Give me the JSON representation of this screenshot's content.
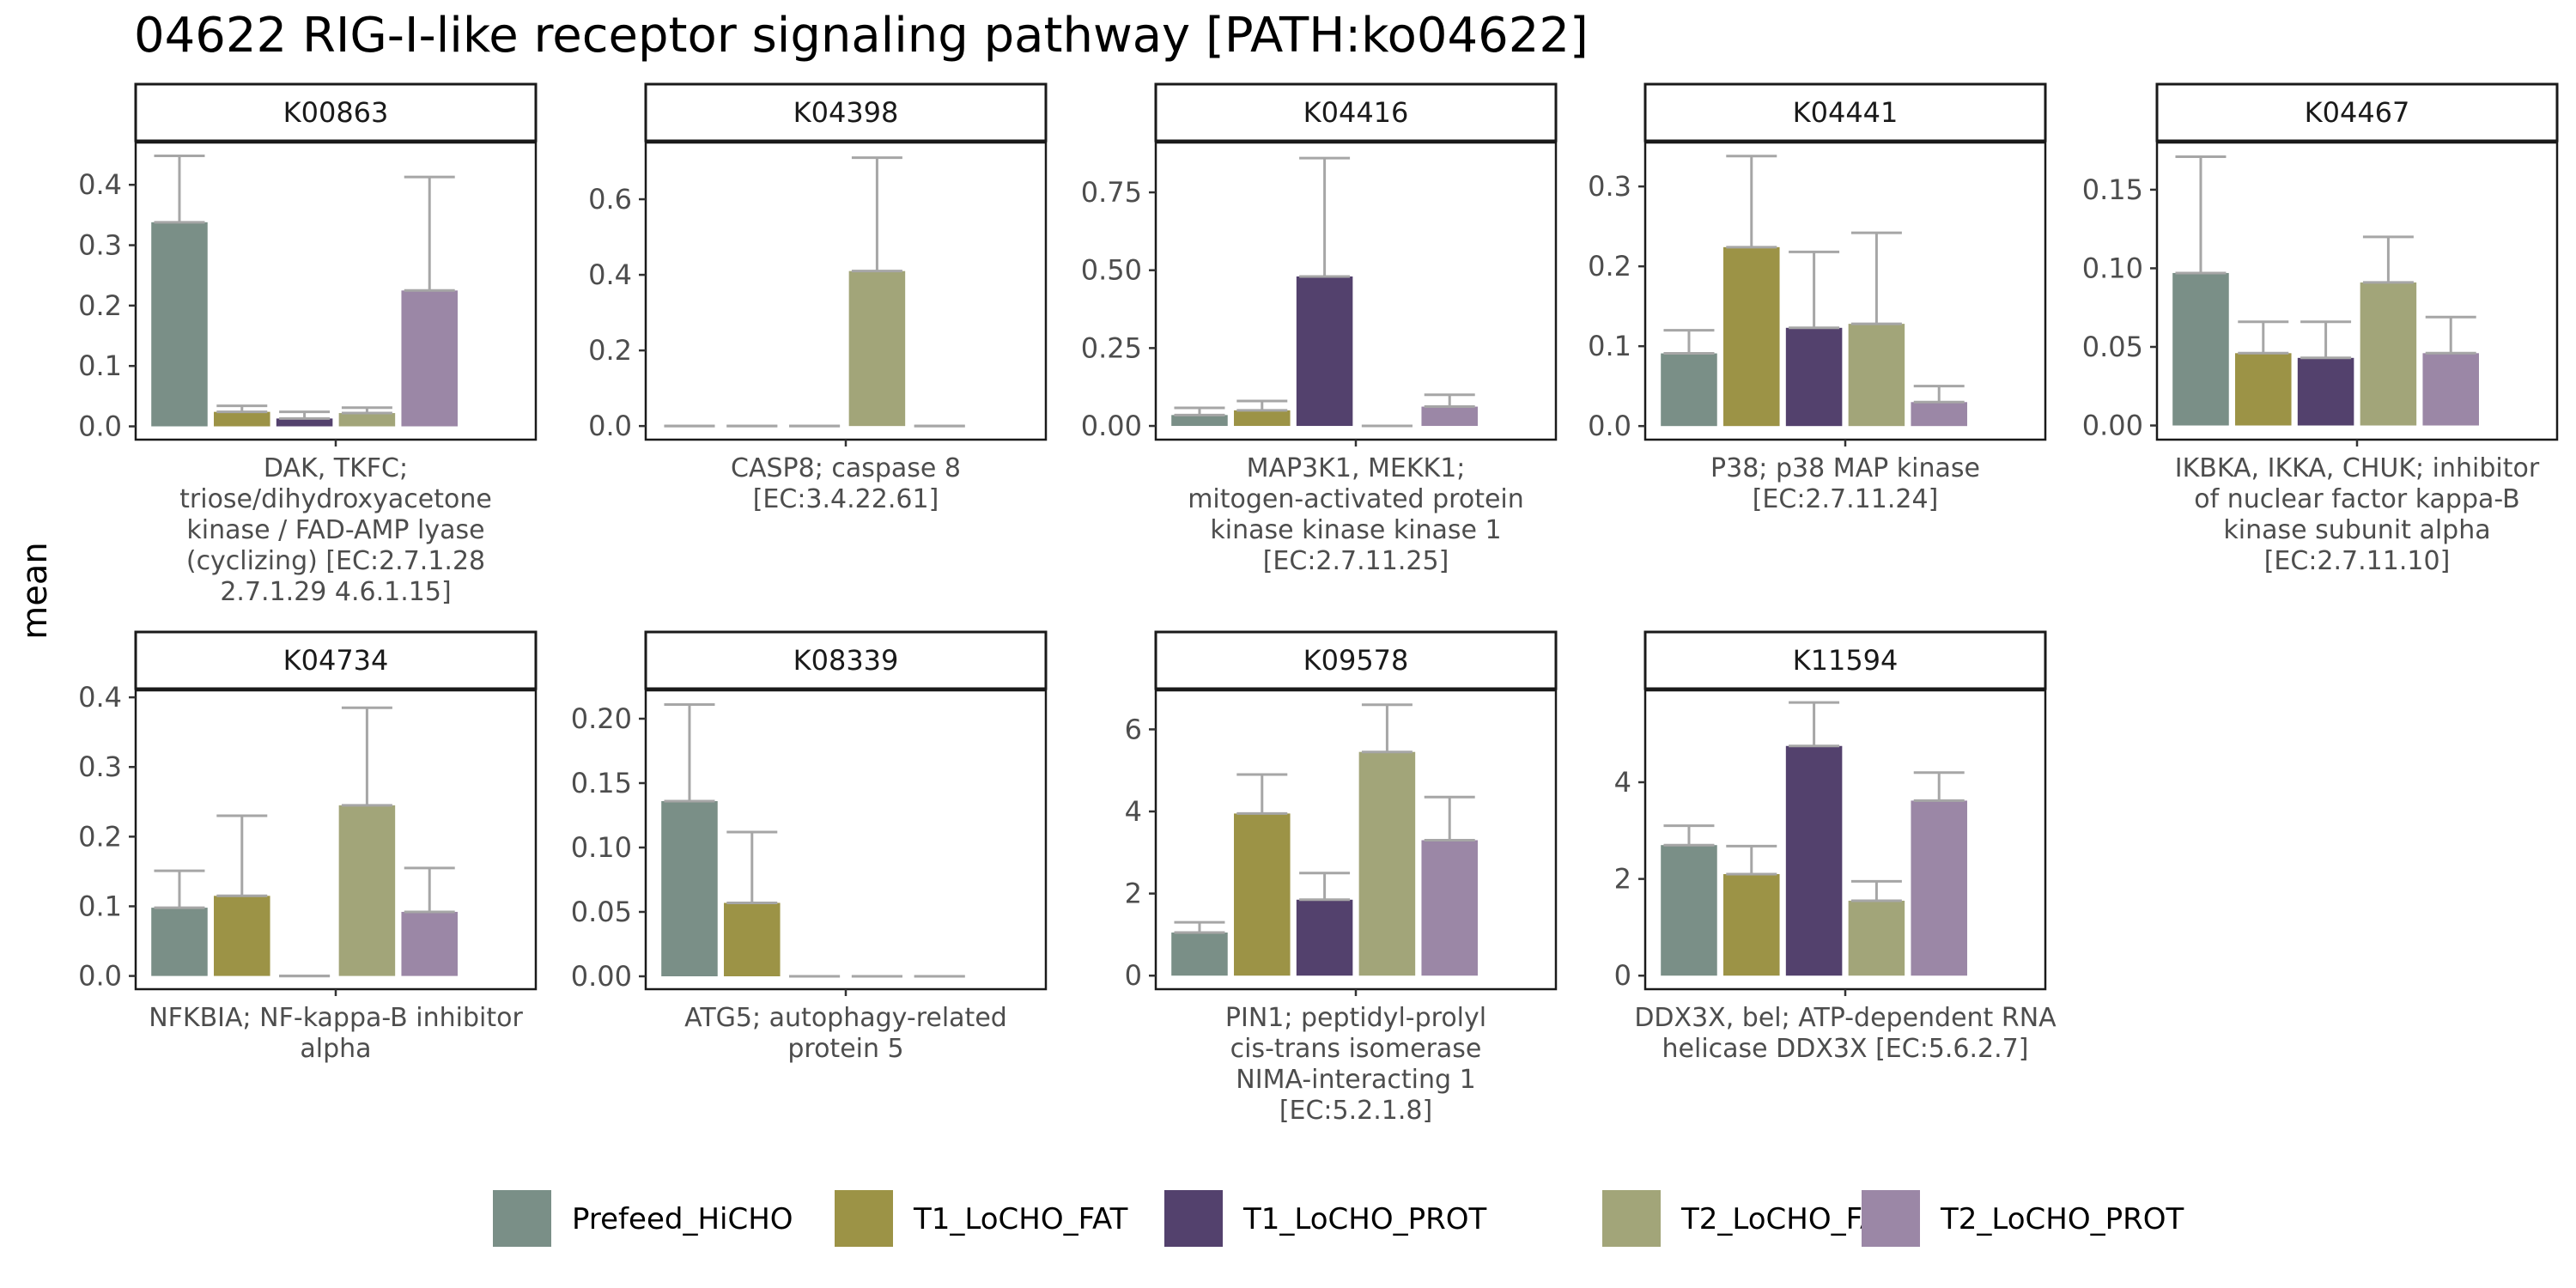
{
  "chart_data": {
    "type": "bar",
    "title": "04622 RIG-I-like receptor signaling pathway [PATH:ko04622]",
    "ylabel": "mean",
    "xlabel": "",
    "grid": false,
    "legend_position": "bottom",
    "series_names": [
      "Prefeed_HiCHO",
      "T1_LoCHO_FAT",
      "T1_LoCHO_PROT",
      "T2_LoCHO_FAT",
      "T2_LoCHO_PROT"
    ],
    "colors": [
      "#7a8f87",
      "#9c9346",
      "#53416d",
      "#a2a579",
      "#9b87a6"
    ],
    "error_bar_color": "#a6a6a6",
    "panels": [
      {
        "strip": "K00863",
        "category_lines": [
          "DAK, TKFC;",
          "triose/dihydroxyacetone",
          "kinase / FAD-AMP lyase",
          "(cyclizing) [EC:2.7.1.28",
          "2.7.1.29 4.6.1.15]"
        ],
        "values": [
          0.338,
          0.024,
          0.013,
          0.022,
          0.225
        ],
        "errors_upper": [
          0.448,
          0.034,
          0.024,
          0.031,
          0.413
        ],
        "yticks": [
          0.0,
          0.1,
          0.2,
          0.3,
          0.4
        ],
        "tick_labels": [
          "0.0",
          "0.1",
          "0.2",
          "0.3",
          "0.4"
        ],
        "ylim": [
          -0.022,
          0.47
        ]
      },
      {
        "strip": "K04398",
        "category_lines": [
          "CASP8; caspase 8",
          "[EC:3.4.22.61]"
        ],
        "values": [
          0.0,
          0.0,
          0.0,
          0.41,
          0.0
        ],
        "errors_upper": [
          0.0,
          0.0,
          0.0,
          0.71,
          0.0
        ],
        "yticks": [
          0.0,
          0.2,
          0.4,
          0.6
        ],
        "tick_labels": [
          "0.0",
          "0.2",
          "0.4",
          "0.6"
        ],
        "ylim": [
          -0.036,
          0.75
        ]
      },
      {
        "strip": "K04416",
        "category_lines": [
          "MAP3K1, MEKK1;",
          "mitogen-activated protein",
          "kinase kinase kinase 1",
          "[EC:2.7.11.25]"
        ],
        "values": [
          0.035,
          0.05,
          0.48,
          0.0,
          0.062
        ],
        "errors_upper": [
          0.058,
          0.08,
          0.86,
          0.0,
          0.1
        ],
        "yticks": [
          0.0,
          0.25,
          0.5,
          0.75
        ],
        "tick_labels": [
          "0.00",
          "0.25",
          "0.50",
          "0.75"
        ],
        "ylim": [
          -0.044,
          0.91
        ]
      },
      {
        "strip": "K04441",
        "category_lines": [
          "P38; p38 MAP kinase",
          "[EC:2.7.11.24]"
        ],
        "values": [
          0.091,
          0.224,
          0.123,
          0.128,
          0.03
        ],
        "errors_upper": [
          0.12,
          0.338,
          0.218,
          0.242,
          0.05
        ],
        "yticks": [
          0.0,
          0.1,
          0.2,
          0.3
        ],
        "tick_labels": [
          "0.0",
          "0.1",
          "0.2",
          "0.3"
        ],
        "ylim": [
          -0.017,
          0.355
        ]
      },
      {
        "strip": "K04467",
        "category_lines": [
          "IKBKA, IKKA, CHUK; inhibitor",
          "of nuclear factor kappa-B",
          "kinase subunit alpha",
          "[EC:2.7.11.10]"
        ],
        "values": [
          0.097,
          0.046,
          0.043,
          0.091,
          0.046
        ],
        "errors_upper": [
          0.171,
          0.066,
          0.066,
          0.12,
          0.069
        ],
        "yticks": [
          0.0,
          0.05,
          0.1,
          0.15
        ],
        "tick_labels": [
          "0.00",
          "0.05",
          "0.10",
          "0.15"
        ],
        "ylim": [
          -0.009,
          0.18
        ]
      },
      {
        "strip": "K04734",
        "category_lines": [
          "NFKBIA; NF-kappa-B inhibitor",
          "alpha"
        ],
        "values": [
          0.098,
          0.115,
          0.0,
          0.245,
          0.092
        ],
        "errors_upper": [
          0.151,
          0.23,
          0.0,
          0.385,
          0.155
        ],
        "yticks": [
          0.0,
          0.1,
          0.2,
          0.3,
          0.4
        ],
        "tick_labels": [
          "0.0",
          "0.1",
          "0.2",
          "0.3",
          "0.4"
        ],
        "ylim": [
          -0.019,
          0.41
        ]
      },
      {
        "strip": "K08339",
        "category_lines": [
          "ATG5; autophagy-related",
          "protein 5"
        ],
        "values": [
          0.136,
          0.057,
          0.0,
          0.0,
          0.0
        ],
        "errors_upper": [
          0.211,
          0.112,
          0.0,
          0.0,
          0.0
        ],
        "yticks": [
          0.0,
          0.05,
          0.1,
          0.15,
          0.2
        ],
        "tick_labels": [
          "0.00",
          "0.05",
          "0.10",
          "0.15",
          "0.20"
        ],
        "ylim": [
          -0.01,
          0.222
        ]
      },
      {
        "strip": "K09578",
        "category_lines": [
          "PIN1; peptidyl-prolyl",
          "cis-trans isomerase",
          "NIMA-interacting 1",
          "[EC:5.2.1.8]"
        ],
        "values": [
          1.05,
          3.95,
          1.85,
          5.45,
          3.3
        ],
        "errors_upper": [
          1.3,
          4.9,
          2.5,
          6.6,
          4.35
        ],
        "yticks": [
          0,
          2,
          4,
          6
        ],
        "tick_labels": [
          "0",
          "2",
          "4",
          "6"
        ],
        "ylim": [
          -0.33,
          6.95
        ]
      },
      {
        "strip": "K11594",
        "category_lines": [
          "DDX3X, bel; ATP-dependent RNA",
          "helicase DDX3X [EC:5.6.2.7]"
        ],
        "values": [
          2.7,
          2.1,
          4.75,
          1.55,
          3.62
        ],
        "errors_upper": [
          3.1,
          2.68,
          5.65,
          1.95,
          4.2
        ],
        "yticks": [
          0,
          2,
          4
        ],
        "tick_labels": [
          "0",
          "2",
          "4"
        ],
        "ylim": [
          -0.28,
          5.9
        ]
      }
    ]
  }
}
